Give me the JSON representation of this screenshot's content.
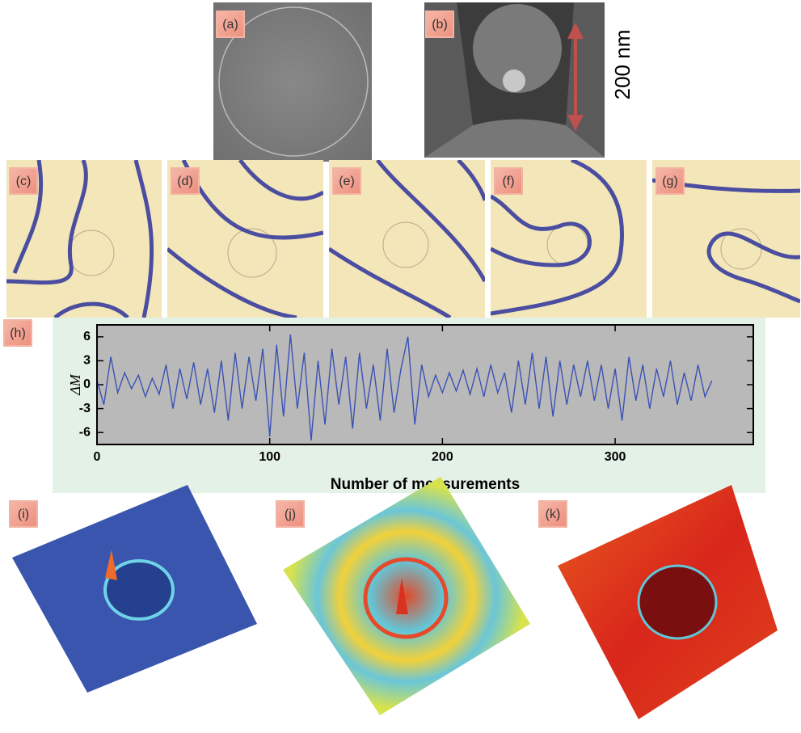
{
  "panel_labels": [
    "(a)",
    "(b)",
    "(c)",
    "(d)",
    "(e)",
    "(f)",
    "(g)",
    "(h)",
    "(i)",
    "(j)",
    "(k)"
  ],
  "scale_label": "200 nm",
  "chart_data": {
    "type": "line",
    "x_label": "Number of measurements",
    "y_label": "ΔM",
    "x": [
      0,
      4,
      8,
      12,
      16,
      20,
      24,
      28,
      32,
      36,
      40,
      44,
      48,
      52,
      56,
      60,
      64,
      68,
      72,
      76,
      80,
      84,
      88,
      92,
      96,
      100,
      104,
      108,
      112,
      116,
      120,
      124,
      128,
      132,
      136,
      140,
      144,
      148,
      152,
      156,
      160,
      164,
      168,
      172,
      176,
      180,
      184,
      188,
      192,
      196,
      200,
      204,
      208,
      212,
      216,
      220,
      224,
      228,
      232,
      236,
      240,
      244,
      248,
      252,
      256,
      260,
      264,
      268,
      272,
      276,
      280,
      284,
      288,
      292,
      296,
      300,
      304,
      308,
      312,
      316,
      320,
      324,
      328,
      332,
      336,
      340,
      344,
      348,
      352,
      356
    ],
    "series": [
      {
        "color": "#3b52b5",
        "values": [
          0.5,
          -2.5,
          3.5,
          -1,
          1.5,
          -0.5,
          1.2,
          -1.5,
          0.8,
          -1.2,
          2.5,
          -3,
          2,
          -1.8,
          2.8,
          -2.5,
          2,
          -3.5,
          3,
          -4.5,
          4,
          -3,
          3.5,
          -2,
          4.5,
          -6.5,
          5,
          -4,
          6.3,
          -3,
          4,
          -7,
          3,
          -5,
          4.5,
          -2.5,
          3.5,
          -5.5,
          4,
          -3,
          2.5,
          -4.5,
          4.5,
          -3.5,
          2,
          6,
          -5,
          2.5,
          -1.5,
          1.2,
          -1,
          1.5,
          -0.8,
          1.8,
          -1.2,
          2,
          -1.5,
          2.5,
          -1,
          1.5,
          -3.5,
          3,
          -2.5,
          4,
          -3,
          3.5,
          -4,
          3,
          -2.5,
          2.5,
          -1.5,
          3,
          -2,
          2.5,
          -3,
          2,
          -4.5,
          3.5,
          -2,
          2.5,
          -3,
          2,
          -1.5,
          3,
          -2.5,
          1.5,
          -2,
          2.5,
          -1.5,
          0.5
        ]
      }
    ],
    "xlim": [
      0,
      380
    ],
    "ylim": [
      -7.5,
      7.5
    ],
    "xticks": [
      0,
      100,
      200,
      300
    ],
    "yticks": [
      -6,
      -3,
      0,
      3,
      6
    ],
    "background": "#b9b9b9",
    "panel_background": "#e4f1e6"
  }
}
